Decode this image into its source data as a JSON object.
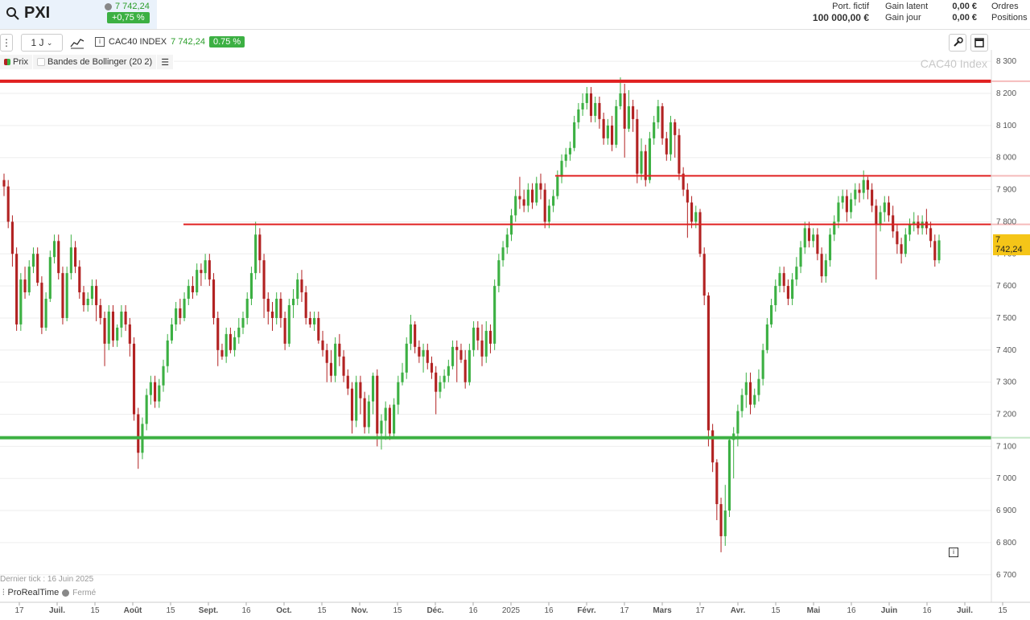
{
  "header": {
    "ticker": "PXI",
    "quote_price": "7 742,24",
    "quote_change": "+0,75 %",
    "portfolio_label": "Port. fictif",
    "portfolio_value": "100 000,00 €",
    "gain_latent_label": "Gain latent",
    "gain_jour_label": "Gain jour",
    "gain_latent_value": "0,00 €",
    "gain_jour_value": "0,00 €",
    "ordres_label": "Ordres",
    "positions_label": "Positions"
  },
  "toolbar": {
    "timeframe": "1 J",
    "instrument": "CAC40 INDEX",
    "instrument_price": "7 742,24",
    "instrument_change": "0.75 %"
  },
  "legend": {
    "prix": "Prix",
    "bollinger": "Bandes de Bollinger (20 2)"
  },
  "watermark": "CAC40 Index",
  "last_price_badge": "7 742,24",
  "footer": {
    "last_tick": "Dernier tick : 16 Juin 2025",
    "provider": "ProRealTime",
    "status": "Fermé"
  },
  "colors": {
    "up": "#3cb043",
    "down": "#b22222",
    "resistance": "#e02020",
    "support": "#3cb043",
    "badge": "#f5c518"
  },
  "chart_data": {
    "type": "candlestick",
    "title": "CAC40 Index",
    "ylim": [
      6650,
      8350
    ],
    "y_ticks": [
      8300,
      8200,
      8100,
      8000,
      7900,
      7800,
      7700,
      7600,
      7500,
      7400,
      7300,
      7200,
      7100,
      7000,
      6900,
      6800,
      6700
    ],
    "y_tick_labels": [
      "8 300",
      "8 200",
      "8 100",
      "8 000",
      "7 900",
      "7 800",
      "7 700",
      "7 600",
      "7 500",
      "7 400",
      "7 300",
      "7 200",
      "7 100",
      "7 000",
      "6 900",
      "6 800",
      "6 700"
    ],
    "x_tick_labels": [
      "17",
      "Juil.",
      "15",
      "Août",
      "15",
      "Sept.",
      "16",
      "Oct.",
      "15",
      "Nov.",
      "15",
      "Déc.",
      "16",
      "2025",
      "16",
      "Févr.",
      "17",
      "Mars",
      "17",
      "Avr.",
      "15",
      "Mai",
      "16",
      "Juin",
      "16",
      "Juil.",
      "15"
    ],
    "horizontal_lines": [
      {
        "kind": "resistance",
        "value": 8238
      },
      {
        "kind": "resistance",
        "value": 7943
      },
      {
        "kind": "resistance",
        "value": 7792
      },
      {
        "kind": "support",
        "value": 7127
      }
    ],
    "last_price": 7742.24,
    "candles": [
      [
        7930,
        7910,
        7950,
        7880
      ],
      [
        7910,
        7800,
        7930,
        7780
      ],
      [
        7800,
        7700,
        7820,
        7660
      ],
      [
        7700,
        7480,
        7720,
        7460
      ],
      [
        7480,
        7620,
        7640,
        7460
      ],
      [
        7620,
        7580,
        7660,
        7560
      ],
      [
        7580,
        7660,
        7680,
        7570
      ],
      [
        7660,
        7700,
        7720,
        7640
      ],
      [
        7700,
        7610,
        7720,
        7600
      ],
      [
        7610,
        7470,
        7630,
        7450
      ],
      [
        7470,
        7560,
        7580,
        7460
      ],
      [
        7560,
        7690,
        7710,
        7550
      ],
      [
        7690,
        7740,
        7760,
        7670
      ],
      [
        7740,
        7640,
        7760,
        7620
      ],
      [
        7640,
        7500,
        7660,
        7480
      ],
      [
        7500,
        7640,
        7660,
        7490
      ],
      [
        7640,
        7720,
        7760,
        7620
      ],
      [
        7720,
        7660,
        7740,
        7640
      ],
      [
        7660,
        7580,
        7680,
        7560
      ],
      [
        7580,
        7540,
        7600,
        7520
      ],
      [
        7540,
        7560,
        7580,
        7520
      ],
      [
        7560,
        7600,
        7620,
        7540
      ],
      [
        7600,
        7540,
        7620,
        7490
      ],
      [
        7540,
        7500,
        7560,
        7480
      ],
      [
        7500,
        7420,
        7520,
        7350
      ],
      [
        7420,
        7520,
        7540,
        7400
      ],
      [
        7520,
        7430,
        7540,
        7410
      ],
      [
        7430,
        7470,
        7480,
        7410
      ],
      [
        7470,
        7520,
        7540,
        7440
      ],
      [
        7520,
        7480,
        7540,
        7460
      ],
      [
        7480,
        7420,
        7500,
        7380
      ],
      [
        7420,
        7200,
        7440,
        7180
      ],
      [
        7200,
        7080,
        7220,
        7030
      ],
      [
        7080,
        7170,
        7190,
        7060
      ],
      [
        7170,
        7260,
        7280,
        7150
      ],
      [
        7260,
        7300,
        7320,
        7230
      ],
      [
        7300,
        7240,
        7320,
        7220
      ],
      [
        7240,
        7290,
        7310,
        7220
      ],
      [
        7290,
        7350,
        7370,
        7270
      ],
      [
        7350,
        7430,
        7450,
        7330
      ],
      [
        7430,
        7480,
        7500,
        7420
      ],
      [
        7480,
        7530,
        7550,
        7460
      ],
      [
        7530,
        7500,
        7560,
        7480
      ],
      [
        7500,
        7560,
        7580,
        7490
      ],
      [
        7560,
        7600,
        7620,
        7540
      ],
      [
        7600,
        7580,
        7630,
        7560
      ],
      [
        7580,
        7650,
        7670,
        7570
      ],
      [
        7650,
        7640,
        7670,
        7600
      ],
      [
        7640,
        7680,
        7700,
        7620
      ],
      [
        7680,
        7620,
        7700,
        7600
      ],
      [
        7620,
        7500,
        7640,
        7480
      ],
      [
        7500,
        7400,
        7520,
        7350
      ],
      [
        7400,
        7380,
        7420,
        7370
      ],
      [
        7380,
        7450,
        7470,
        7360
      ],
      [
        7450,
        7400,
        7470,
        7390
      ],
      [
        7400,
        7440,
        7460,
        7380
      ],
      [
        7440,
        7470,
        7500,
        7420
      ],
      [
        7470,
        7500,
        7520,
        7450
      ],
      [
        7500,
        7560,
        7580,
        7480
      ],
      [
        7560,
        7640,
        7660,
        7540
      ],
      [
        7640,
        7760,
        7800,
        7620
      ],
      [
        7760,
        7680,
        7780,
        7640
      ],
      [
        7680,
        7560,
        7700,
        7500
      ],
      [
        7560,
        7520,
        7580,
        7480
      ],
      [
        7520,
        7500,
        7550,
        7460
      ],
      [
        7500,
        7560,
        7580,
        7480
      ],
      [
        7560,
        7500,
        7580,
        7470
      ],
      [
        7500,
        7420,
        7520,
        7400
      ],
      [
        7420,
        7540,
        7560,
        7410
      ],
      [
        7540,
        7560,
        7590,
        7500
      ],
      [
        7560,
        7620,
        7640,
        7540
      ],
      [
        7620,
        7580,
        7650,
        7550
      ],
      [
        7580,
        7500,
        7600,
        7480
      ],
      [
        7500,
        7480,
        7520,
        7470
      ],
      [
        7480,
        7500,
        7520,
        7460
      ],
      [
        7500,
        7430,
        7520,
        7420
      ],
      [
        7430,
        7400,
        7460,
        7380
      ],
      [
        7400,
        7360,
        7420,
        7300
      ],
      [
        7360,
        7320,
        7400,
        7300
      ],
      [
        7320,
        7420,
        7440,
        7300
      ],
      [
        7420,
        7380,
        7450,
        7350
      ],
      [
        7380,
        7320,
        7400,
        7300
      ],
      [
        7320,
        7280,
        7340,
        7260
      ],
      [
        7280,
        7180,
        7300,
        7140
      ],
      [
        7180,
        7300,
        7320,
        7160
      ],
      [
        7300,
        7250,
        7320,
        7200
      ],
      [
        7250,
        7160,
        7270,
        7140
      ],
      [
        7160,
        7240,
        7260,
        7140
      ],
      [
        7240,
        7320,
        7330,
        7200
      ],
      [
        7320,
        7140,
        7340,
        7100
      ],
      [
        7140,
        7180,
        7200,
        7090
      ],
      [
        7180,
        7220,
        7240,
        7120
      ],
      [
        7220,
        7140,
        7230,
        7120
      ],
      [
        7140,
        7230,
        7250,
        7130
      ],
      [
        7230,
        7300,
        7320,
        7200
      ],
      [
        7300,
        7330,
        7360,
        7290
      ],
      [
        7330,
        7420,
        7440,
        7310
      ],
      [
        7420,
        7480,
        7510,
        7400
      ],
      [
        7480,
        7410,
        7490,
        7390
      ],
      [
        7410,
        7380,
        7430,
        7360
      ],
      [
        7380,
        7400,
        7420,
        7330
      ],
      [
        7400,
        7360,
        7420,
        7340
      ],
      [
        7360,
        7330,
        7380,
        7310
      ],
      [
        7330,
        7270,
        7350,
        7200
      ],
      [
        7270,
        7300,
        7320,
        7250
      ],
      [
        7300,
        7320,
        7340,
        7280
      ],
      [
        7320,
        7350,
        7370,
        7300
      ],
      [
        7350,
        7410,
        7430,
        7340
      ],
      [
        7410,
        7400,
        7430,
        7300
      ],
      [
        7400,
        7370,
        7420,
        7360
      ],
      [
        7370,
        7300,
        7400,
        7280
      ],
      [
        7300,
        7400,
        7420,
        7290
      ],
      [
        7400,
        7470,
        7490,
        7380
      ],
      [
        7470,
        7430,
        7490,
        7400
      ],
      [
        7430,
        7380,
        7480,
        7350
      ],
      [
        7380,
        7460,
        7490,
        7360
      ],
      [
        7460,
        7420,
        7480,
        7390
      ],
      [
        7420,
        7600,
        7620,
        7400
      ],
      [
        7600,
        7680,
        7700,
        7580
      ],
      [
        7680,
        7720,
        7740,
        7660
      ],
      [
        7720,
        7760,
        7780,
        7700
      ],
      [
        7760,
        7820,
        7840,
        7740
      ],
      [
        7820,
        7880,
        7900,
        7800
      ],
      [
        7880,
        7870,
        7940,
        7840
      ],
      [
        7870,
        7850,
        7900,
        7830
      ],
      [
        7850,
        7900,
        7920,
        7830
      ],
      [
        7900,
        7860,
        7920,
        7840
      ],
      [
        7860,
        7920,
        7940,
        7850
      ],
      [
        7920,
        7900,
        7950,
        7870
      ],
      [
        7900,
        7800,
        7920,
        7780
      ],
      [
        7800,
        7850,
        7870,
        7780
      ],
      [
        7850,
        7880,
        7900,
        7830
      ],
      [
        7880,
        7940,
        7960,
        7870
      ],
      [
        7940,
        7990,
        8010,
        7920
      ],
      [
        7990,
        8010,
        8030,
        7970
      ],
      [
        8010,
        8030,
        8050,
        7990
      ],
      [
        8030,
        8110,
        8130,
        8020
      ],
      [
        8110,
        8150,
        8170,
        8090
      ],
      [
        8150,
        8170,
        8200,
        8130
      ],
      [
        8170,
        8200,
        8220,
        8150
      ],
      [
        8200,
        8130,
        8220,
        8110
      ],
      [
        8130,
        8170,
        8190,
        8110
      ],
      [
        8170,
        8120,
        8190,
        8090
      ],
      [
        8120,
        8060,
        8140,
        8040
      ],
      [
        8060,
        8100,
        8120,
        8040
      ],
      [
        8100,
        8040,
        8130,
        8020
      ],
      [
        8040,
        8160,
        8180,
        8030
      ],
      [
        8160,
        8200,
        8250,
        8150
      ],
      [
        8200,
        8090,
        8230,
        8000
      ],
      [
        8090,
        8160,
        8210,
        8080
      ],
      [
        8160,
        8120,
        8180,
        8080
      ],
      [
        8120,
        7950,
        8150,
        7920
      ],
      [
        7950,
        8020,
        8060,
        7930
      ],
      [
        8020,
        7930,
        8040,
        7910
      ],
      [
        7930,
        8060,
        8080,
        7920
      ],
      [
        8060,
        8110,
        8130,
        8040
      ],
      [
        8110,
        8160,
        8180,
        8090
      ],
      [
        8160,
        8060,
        8170,
        8040
      ],
      [
        8060,
        8010,
        8080,
        7990
      ],
      [
        8010,
        8110,
        8130,
        7990
      ],
      [
        8110,
        8070,
        8120,
        8000
      ],
      [
        8070,
        7950,
        8090,
        7930
      ],
      [
        7950,
        7900,
        7970,
        7880
      ],
      [
        7900,
        7860,
        7920,
        7750
      ],
      [
        7860,
        7800,
        7880,
        7780
      ],
      [
        7800,
        7830,
        7850,
        7780
      ],
      [
        7830,
        7700,
        7840,
        7690
      ],
      [
        7700,
        7570,
        7720,
        7540
      ],
      [
        7570,
        7150,
        7580,
        7100
      ],
      [
        7150,
        7050,
        7170,
        7020
      ],
      [
        7050,
        6920,
        7060,
        6870
      ],
      [
        6920,
        6820,
        6940,
        6770
      ],
      [
        6820,
        6900,
        6980,
        6790
      ],
      [
        6900,
        7120,
        7130,
        6880
      ],
      [
        7120,
        7140,
        7160,
        7000
      ],
      [
        7140,
        7210,
        7230,
        7100
      ],
      [
        7210,
        7260,
        7280,
        7190
      ],
      [
        7260,
        7300,
        7330,
        7220
      ],
      [
        7300,
        7230,
        7330,
        7200
      ],
      [
        7230,
        7260,
        7280,
        7220
      ],
      [
        7260,
        7310,
        7340,
        7240
      ],
      [
        7310,
        7400,
        7420,
        7290
      ],
      [
        7400,
        7480,
        7500,
        7390
      ],
      [
        7480,
        7540,
        7560,
        7470
      ],
      [
        7540,
        7600,
        7620,
        7520
      ],
      [
        7600,
        7640,
        7660,
        7580
      ],
      [
        7640,
        7600,
        7660,
        7580
      ],
      [
        7600,
        7560,
        7620,
        7540
      ],
      [
        7560,
        7620,
        7640,
        7540
      ],
      [
        7620,
        7660,
        7690,
        7600
      ],
      [
        7660,
        7720,
        7740,
        7640
      ],
      [
        7720,
        7780,
        7800,
        7700
      ],
      [
        7780,
        7740,
        7800,
        7720
      ],
      [
        7740,
        7760,
        7780,
        7720
      ],
      [
        7760,
        7700,
        7780,
        7680
      ],
      [
        7700,
        7630,
        7720,
        7610
      ],
      [
        7630,
        7680,
        7700,
        7610
      ],
      [
        7680,
        7760,
        7780,
        7660
      ],
      [
        7760,
        7800,
        7820,
        7740
      ],
      [
        7800,
        7860,
        7880,
        7780
      ],
      [
        7860,
        7880,
        7900,
        7840
      ],
      [
        7880,
        7830,
        7900,
        7800
      ],
      [
        7830,
        7870,
        7890,
        7810
      ],
      [
        7870,
        7900,
        7920,
        7850
      ],
      [
        7900,
        7890,
        7920,
        7860
      ],
      [
        7890,
        7930,
        7960,
        7870
      ],
      [
        7930,
        7900,
        7940,
        7870
      ],
      [
        7900,
        7850,
        7920,
        7830
      ],
      [
        7850,
        7790,
        7870,
        7620
      ],
      [
        7790,
        7830,
        7850,
        7770
      ],
      [
        7830,
        7860,
        7880,
        7800
      ],
      [
        7860,
        7820,
        7880,
        7800
      ],
      [
        7820,
        7770,
        7850,
        7750
      ],
      [
        7770,
        7730,
        7790,
        7700
      ],
      [
        7730,
        7700,
        7750,
        7670
      ],
      [
        7700,
        7760,
        7780,
        7690
      ],
      [
        7760,
        7790,
        7810,
        7740
      ],
      [
        7790,
        7800,
        7830,
        7770
      ],
      [
        7800,
        7780,
        7820,
        7760
      ],
      [
        7780,
        7800,
        7820,
        7760
      ],
      [
        7800,
        7780,
        7840,
        7760
      ],
      [
        7780,
        7740,
        7800,
        7720
      ],
      [
        7740,
        7680,
        7760,
        7660
      ],
      [
        7680,
        7742,
        7760,
        7670
      ]
    ]
  }
}
